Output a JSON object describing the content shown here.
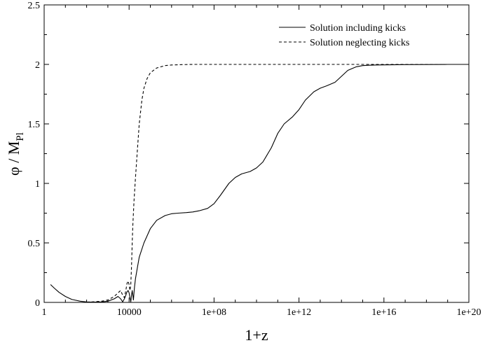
{
  "chart_data": {
    "type": "line",
    "title": "",
    "xlabel": "1+z",
    "ylabel": "φ / M",
    "ylabel_sub": "Pl",
    "xscale": "log",
    "xlim": [
      1,
      1e+20
    ],
    "ylim": [
      0,
      2.5
    ],
    "grid": false,
    "legend_position": "top-right",
    "x_ticks": [
      1,
      10000,
      100000000.0,
      1000000000000.0,
      1e+16,
      1e+20
    ],
    "x_tick_labels": [
      "1",
      "10000",
      "1e+08",
      "1e+12",
      "1e+16",
      "1e+20"
    ],
    "y_ticks": [
      0,
      0.5,
      1,
      1.5,
      2,
      2.5
    ],
    "y_tick_labels": [
      "0",
      "0.5",
      "1",
      "1.5",
      "2",
      "2.5"
    ],
    "series": [
      {
        "name": "Solution including kicks",
        "style": "solid",
        "x": [
          2,
          3,
          5,
          10,
          20,
          50,
          100,
          200,
          500,
          1000,
          2000,
          3000,
          4000,
          5000,
          6000,
          7000,
          8000,
          9000,
          10000,
          11000,
          12000,
          13000,
          14000,
          15000,
          16000,
          17000,
          18000,
          20000,
          25000,
          30000,
          50000,
          100000,
          200000,
          500000,
          1000000.0,
          2000000.0,
          5000000.0,
          10000000.0,
          20000000.0,
          50000000.0,
          100000000.0,
          200000000.0,
          500000000.0,
          1000000000.0,
          2000000000.0,
          5000000000.0,
          10000000000.0,
          20000000000.0,
          50000000000.0,
          100000000000.0,
          200000000000.0,
          500000000000.0,
          1000000000000.0,
          2000000000000.0,
          5000000000000.0,
          10000000000000.0,
          20000000000000.0,
          50000000000000.0,
          100000000000000.0,
          200000000000000.0,
          500000000000000.0,
          1000000000000000.0,
          2000000000000000.0,
          5000000000000000.0,
          1e+16,
          1e+17,
          1e+18,
          1e+19,
          1e+20
        ],
        "y": [
          0.15,
          0.12,
          0.085,
          0.05,
          0.025,
          0.01,
          0.004,
          0.002,
          0.004,
          0.01,
          0.03,
          0.05,
          0.03,
          0.005,
          0.03,
          0.06,
          0.09,
          0.1,
          0.08,
          0.04,
          0.005,
          0.06,
          0.1,
          0.06,
          0.02,
          0.08,
          0.13,
          0.2,
          0.3,
          0.38,
          0.5,
          0.62,
          0.69,
          0.73,
          0.745,
          0.75,
          0.755,
          0.76,
          0.77,
          0.79,
          0.83,
          0.9,
          1.0,
          1.05,
          1.08,
          1.1,
          1.13,
          1.18,
          1.3,
          1.42,
          1.5,
          1.56,
          1.62,
          1.7,
          1.77,
          1.8,
          1.82,
          1.85,
          1.9,
          1.95,
          1.98,
          1.99,
          1.993,
          1.995,
          1.996,
          1.998,
          1.999,
          2.0,
          2.0
        ]
      },
      {
        "name": "Solution neglecting kicks",
        "style": "dashed",
        "x": [
          100,
          200,
          500,
          1000,
          2000,
          3000,
          4000,
          5000,
          6000,
          7000,
          8000,
          9000,
          10000,
          11000,
          12000,
          13000,
          14000,
          15000,
          17000,
          20000,
          25000,
          30000,
          40000,
          50000,
          70000,
          100000,
          200000,
          500000,
          1000000.0,
          3000000.0,
          10000000.0,
          100000000.0,
          10000000000.0,
          1000000000000.0,
          1000000000000000.0,
          1e+18,
          1e+20
        ],
        "y": [
          0.002,
          0.005,
          0.01,
          0.02,
          0.05,
          0.08,
          0.1,
          0.06,
          0.04,
          0.1,
          0.16,
          0.18,
          0.15,
          0.1,
          0.15,
          0.3,
          0.5,
          0.65,
          0.85,
          1.05,
          1.3,
          1.5,
          1.7,
          1.8,
          1.88,
          1.93,
          1.97,
          1.99,
          1.995,
          1.998,
          2.0,
          2.0,
          2.0,
          2.0,
          2.0,
          2.0,
          2.0
        ]
      }
    ]
  }
}
